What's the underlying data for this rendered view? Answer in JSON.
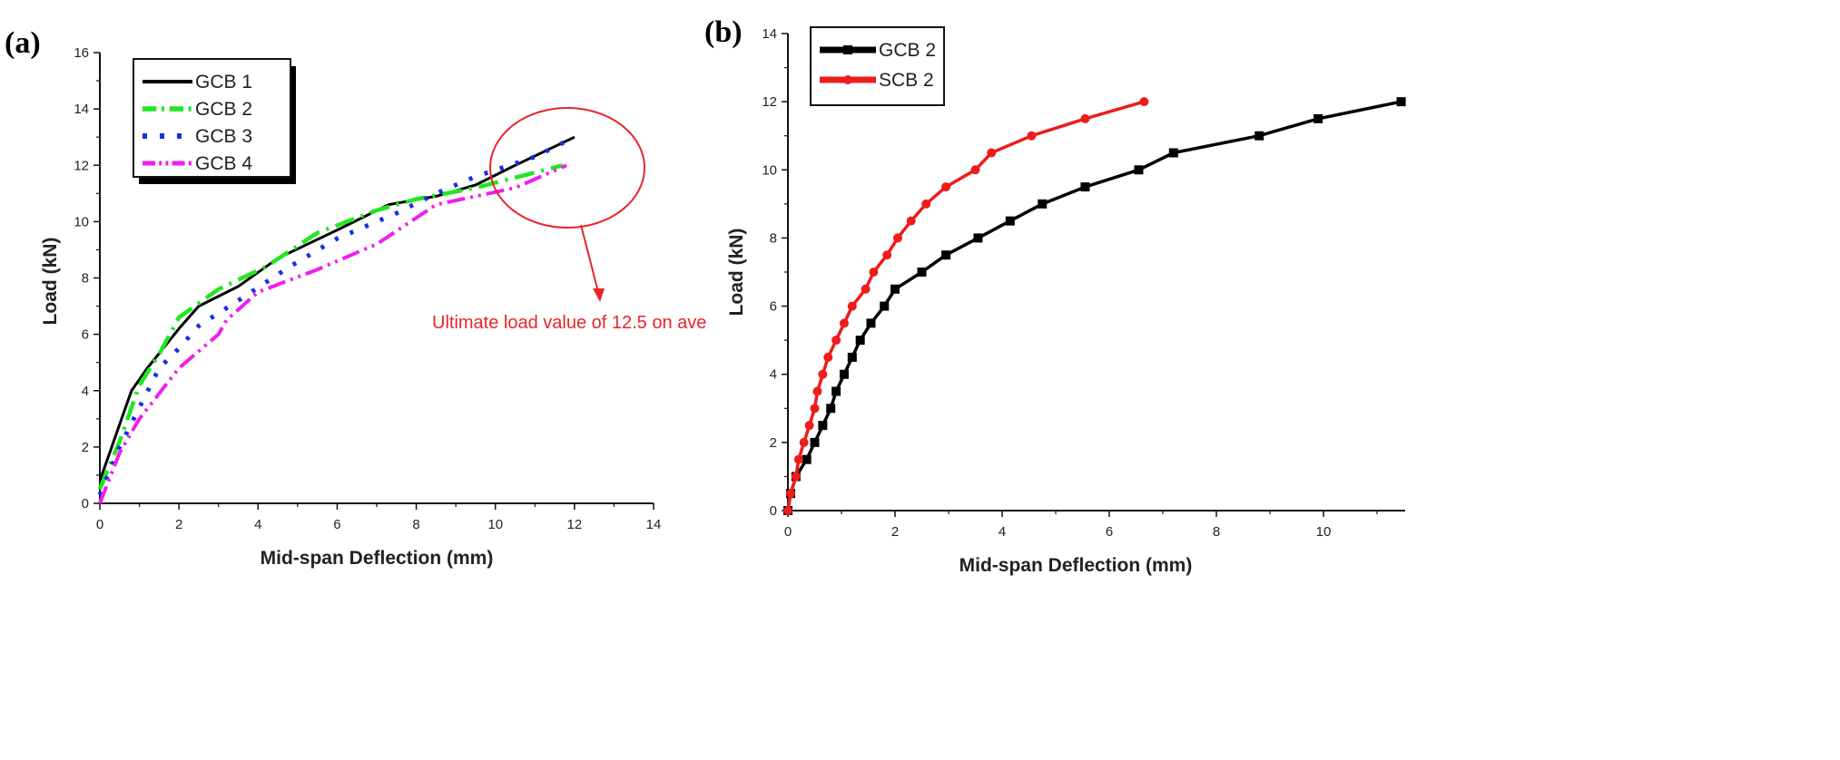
{
  "chart_data": [
    {
      "type": "line",
      "panel_label": "(a)",
      "xlabel": "Mid-span Deflection (mm)",
      "ylabel": "Load (kN)",
      "xlim": [
        0,
        14
      ],
      "ylim": [
        0,
        16
      ],
      "xticks": [
        "0",
        "2",
        "4",
        "6",
        "8",
        "10",
        "12",
        "14"
      ],
      "yticks": [
        "0",
        "2",
        "4",
        "6",
        "8",
        "10",
        "12",
        "14",
        "16"
      ],
      "grid": false,
      "legend_placement": "top-left",
      "series": [
        {
          "name": "GCB 1",
          "color": "#000000",
          "style": "solid",
          "x": [
            0,
            0.3,
            0.6,
            0.8,
            1.2,
            2,
            2.5,
            3.5,
            4.5,
            6,
            7.3,
            8.5,
            9.5,
            10.5,
            12
          ],
          "y": [
            0.8,
            2,
            3.2,
            4,
            4.8,
            6.2,
            7,
            7.7,
            8.7,
            9.7,
            10.6,
            10.9,
            11.3,
            12,
            13
          ]
        },
        {
          "name": "GCB 2",
          "color": "#22e622",
          "style": "dash-dot",
          "x": [
            0,
            0.5,
            1,
            1.5,
            2,
            3,
            4.2,
            5.5,
            7,
            8,
            9.5,
            11.7
          ],
          "y": [
            0.5,
            2.2,
            4.2,
            5.3,
            6.6,
            7.6,
            8.4,
            9.6,
            10.4,
            10.8,
            11.2,
            12
          ]
        },
        {
          "name": "GCB 3",
          "color": "#1a2ee6",
          "style": "dotted",
          "x": [
            0,
            0.5,
            1,
            1.5,
            2,
            2.5,
            3.5,
            4.8,
            6,
            7.5,
            8.5,
            9.5,
            11,
            12
          ],
          "y": [
            0.3,
            2,
            3.4,
            4.8,
            5.5,
            6.3,
            7.2,
            8.4,
            9.4,
            10.3,
            11,
            11.6,
            12.3,
            13
          ]
        },
        {
          "name": "GCB 4",
          "color": "#f01ef0",
          "style": "dash-dot-dot",
          "x": [
            0,
            0.5,
            1,
            2,
            3,
            3.2,
            4,
            5.5,
            7,
            8.5,
            10.5,
            11.8
          ],
          "y": [
            0,
            1.8,
            3,
            4.8,
            6,
            6.5,
            7.5,
            8.3,
            9.2,
            10.6,
            11.2,
            12
          ]
        }
      ],
      "annotation": {
        "text": "Ultimate load value of 12.5 on ave",
        "color": "#e8252a"
      }
    },
    {
      "type": "line",
      "panel_label": "(b)",
      "xlabel": "Mid-span Deflection (mm)",
      "ylabel": "Load (kN)",
      "xlim": [
        0,
        11.5
      ],
      "ylim": [
        0,
        14
      ],
      "xticks": [
        "0",
        "2",
        "4",
        "6",
        "8",
        "10"
      ],
      "yticks": [
        "0",
        "2",
        "4",
        "6",
        "8",
        "10",
        "12",
        "14"
      ],
      "grid": false,
      "legend_placement": "top-left",
      "series": [
        {
          "name": "GCB 2",
          "color": "#000000",
          "marker": "square",
          "x": [
            0,
            0.05,
            0.15,
            0.35,
            0.5,
            0.65,
            0.8,
            0.9,
            1.05,
            1.2,
            1.35,
            1.55,
            1.8,
            2.0,
            2.5,
            2.95,
            3.55,
            4.15,
            4.75,
            5.55,
            6.55,
            7.2,
            8.8,
            9.9,
            11.45
          ],
          "y": [
            0,
            0.5,
            1,
            1.5,
            2,
            2.5,
            3,
            3.5,
            4,
            4.5,
            5,
            5.5,
            6,
            6.5,
            7,
            7.5,
            8,
            8.5,
            9,
            9.5,
            10,
            10.5,
            11,
            11.5,
            12
          ]
        },
        {
          "name": "SCB 2",
          "color": "#ee1c1c",
          "marker": "circle",
          "x": [
            0,
            0.05,
            0.15,
            0.2,
            0.3,
            0.4,
            0.5,
            0.55,
            0.65,
            0.75,
            0.9,
            1.05,
            1.2,
            1.45,
            1.6,
            1.85,
            2.05,
            2.3,
            2.58,
            2.95,
            3.5,
            3.8,
            4.55,
            5.55,
            6.65
          ],
          "y": [
            0,
            0.5,
            1,
            1.5,
            2,
            2.5,
            3,
            3.5,
            4,
            4.5,
            5,
            5.5,
            6,
            6.5,
            7,
            7.5,
            8,
            8.5,
            9,
            9.5,
            10,
            10.5,
            11,
            11.5,
            12
          ]
        }
      ]
    }
  ]
}
